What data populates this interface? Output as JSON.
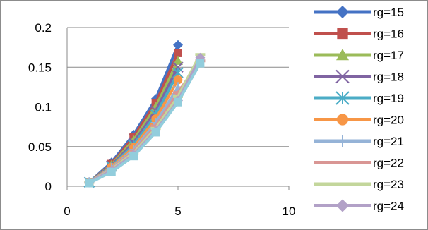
{
  "chart_data": {
    "type": "line",
    "title": "",
    "xlabel": "",
    "ylabel": "",
    "xlim": [
      0,
      10
    ],
    "ylim": [
      0,
      0.2
    ],
    "x_ticks": [
      "0",
      "5",
      "10"
    ],
    "y_ticks": [
      "0",
      "0.05",
      "0.1",
      "0.15",
      "0.2"
    ],
    "grid": "horizontal",
    "legend": "right",
    "x": [
      1,
      2,
      3,
      4,
      5,
      6
    ],
    "series": [
      {
        "name": "rg=15",
        "color": "#4472c4",
        "marker": "diamond",
        "values": [
          0.005,
          0.03,
          0.065,
          0.11,
          0.178,
          null
        ]
      },
      {
        "name": "rg=16",
        "color": "#c0504d",
        "marker": "square",
        "values": [
          0.005,
          0.028,
          0.062,
          0.105,
          0.168,
          null
        ]
      },
      {
        "name": "rg=17",
        "color": "#9bbb59",
        "marker": "triangle",
        "values": [
          0.005,
          0.027,
          0.058,
          0.1,
          0.158,
          null
        ]
      },
      {
        "name": "rg=18",
        "color": "#8064a2",
        "marker": "x",
        "values": [
          0.005,
          0.026,
          0.055,
          0.095,
          0.15,
          null
        ]
      },
      {
        "name": "rg=19",
        "color": "#4bacc6",
        "marker": "asterisk",
        "values": [
          0.005,
          0.025,
          0.052,
          0.09,
          0.143,
          null
        ]
      },
      {
        "name": "rg=20",
        "color": "#f79646",
        "marker": "circle",
        "values": [
          0.005,
          0.024,
          0.049,
          0.085,
          0.134,
          null
        ]
      },
      {
        "name": "rg=21",
        "color": "#95b3d7",
        "marker": "plus",
        "values": [
          0.005,
          0.023,
          0.046,
          0.08,
          0.125,
          null
        ]
      },
      {
        "name": "rg=22",
        "color": "#d99694",
        "marker": "dash",
        "values": [
          0.005,
          0.022,
          0.044,
          0.076,
          0.118,
          0.158
        ]
      },
      {
        "name": "rg=23",
        "color": "#c3d69b",
        "marker": "dash",
        "values": [
          0.005,
          0.021,
          0.042,
          0.073,
          0.113,
          0.166
        ]
      },
      {
        "name": "rg=24",
        "color": "#b2a1c7",
        "marker": "diamond",
        "values": [
          0.005,
          0.02,
          0.04,
          0.07,
          0.108,
          0.162
        ]
      },
      {
        "name": "",
        "color": "#92cddc",
        "marker": "square",
        "values": [
          0.004,
          0.018,
          0.038,
          0.068,
          0.106,
          0.155
        ]
      }
    ]
  }
}
